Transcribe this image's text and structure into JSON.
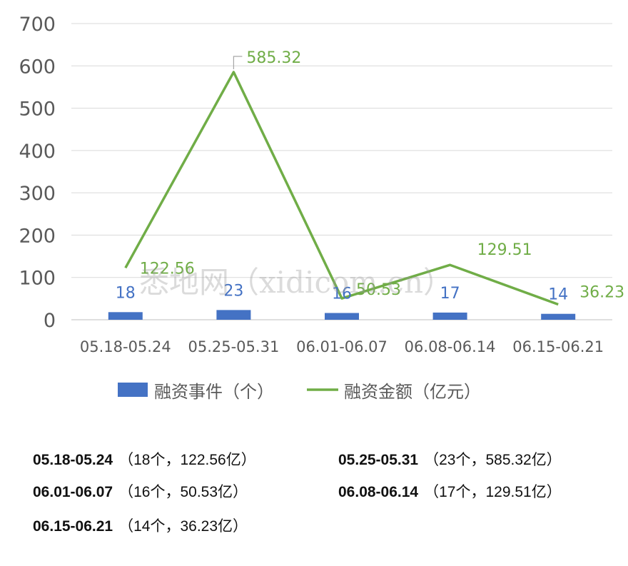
{
  "chart_data": {
    "type": "bar+line",
    "categories": [
      "05.18-05.24",
      "05.25-05.31",
      "06.01-06.07",
      "06.08-06.14",
      "06.15-06.21"
    ],
    "series": [
      {
        "name": "融资事件（个）",
        "type": "bar",
        "color": "#4472c4",
        "values": [
          18,
          23,
          16,
          17,
          14
        ]
      },
      {
        "name": "融资金额（亿元）",
        "type": "line",
        "color": "#70ad47",
        "values": [
          122.56,
          585.32,
          50.53,
          129.51,
          36.23
        ]
      }
    ],
    "bar_labels": [
      "18",
      "23",
      "16",
      "17",
      "14"
    ],
    "line_labels": [
      "122.56",
      "585.32",
      "50.53",
      "129.51",
      "36.23"
    ],
    "y_ticks": [
      "0",
      "100",
      "200",
      "300",
      "400",
      "500",
      "600",
      "700"
    ],
    "ylim": [
      0,
      700
    ],
    "grid": true,
    "legend_position": "bottom"
  },
  "watermark": "悉地网（xidicom.cn）",
  "summary": [
    {
      "range": "05.18-05.24",
      "detail": "（18个，122.56亿）"
    },
    {
      "range": "05.25-05.31",
      "detail": "（23个，585.32亿）"
    },
    {
      "range": "06.01-06.07",
      "detail": "（16个，50.53亿）"
    },
    {
      "range": "06.08-06.14",
      "detail": "（17个，129.51亿）"
    },
    {
      "range": "06.15-06.21",
      "detail": "（14个，36.23亿）"
    }
  ]
}
